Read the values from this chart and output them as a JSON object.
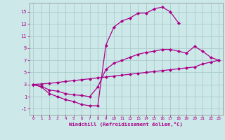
{
  "background_color": "#cce8e8",
  "grid_color": "#aacccc",
  "line_color": "#aa0088",
  "spine_color": "#888888",
  "xlim": [
    -0.5,
    23.5
  ],
  "ylim": [
    -2,
    16.5
  ],
  "xlabel": "Windchill (Refroidissement éolien,°C)",
  "xticks": [
    0,
    1,
    2,
    3,
    4,
    5,
    6,
    7,
    8,
    9,
    10,
    11,
    12,
    13,
    14,
    15,
    16,
    17,
    18,
    19,
    20,
    21,
    22,
    23
  ],
  "yticks": [
    -1,
    1,
    3,
    5,
    7,
    9,
    11,
    13,
    15
  ],
  "curve1_x": [
    0,
    1,
    2,
    3,
    4,
    5,
    6,
    7,
    8,
    9,
    10,
    11,
    12,
    13,
    14,
    15,
    16,
    17,
    18
  ],
  "curve1_y": [
    3,
    2.6,
    1.5,
    1.0,
    0.5,
    0.2,
    -0.3,
    -0.5,
    -0.5,
    9.5,
    12.5,
    13.5,
    14.0,
    14.8,
    14.8,
    15.5,
    15.8,
    15.0,
    13.2
  ],
  "curve2_x": [
    0,
    1,
    2,
    3,
    4,
    5,
    6,
    7,
    8,
    9,
    10,
    11,
    12,
    13,
    14,
    15,
    16,
    17,
    18,
    19,
    20,
    21,
    22,
    23
  ],
  "curve2_y": [
    3,
    2.7,
    2.1,
    1.9,
    1.5,
    1.3,
    1.2,
    1.0,
    2.6,
    5.5,
    6.5,
    7.0,
    7.5,
    8.0,
    8.3,
    8.5,
    8.8,
    8.8,
    8.5,
    8.2,
    9.3,
    8.5,
    7.5,
    7.0
  ],
  "curve3_x": [
    0,
    1,
    2,
    3,
    4,
    5,
    6,
    7,
    8,
    9,
    10,
    11,
    12,
    13,
    14,
    15,
    16,
    17,
    18,
    19,
    20,
    21,
    22,
    23
  ],
  "curve3_y": [
    3,
    3.1,
    3.2,
    3.35,
    3.5,
    3.65,
    3.8,
    3.95,
    4.1,
    4.25,
    4.4,
    4.55,
    4.7,
    4.85,
    5.0,
    5.15,
    5.3,
    5.45,
    5.6,
    5.75,
    5.9,
    6.4,
    6.7,
    7.0
  ],
  "markersize": 2.5,
  "linewidth": 0.9
}
